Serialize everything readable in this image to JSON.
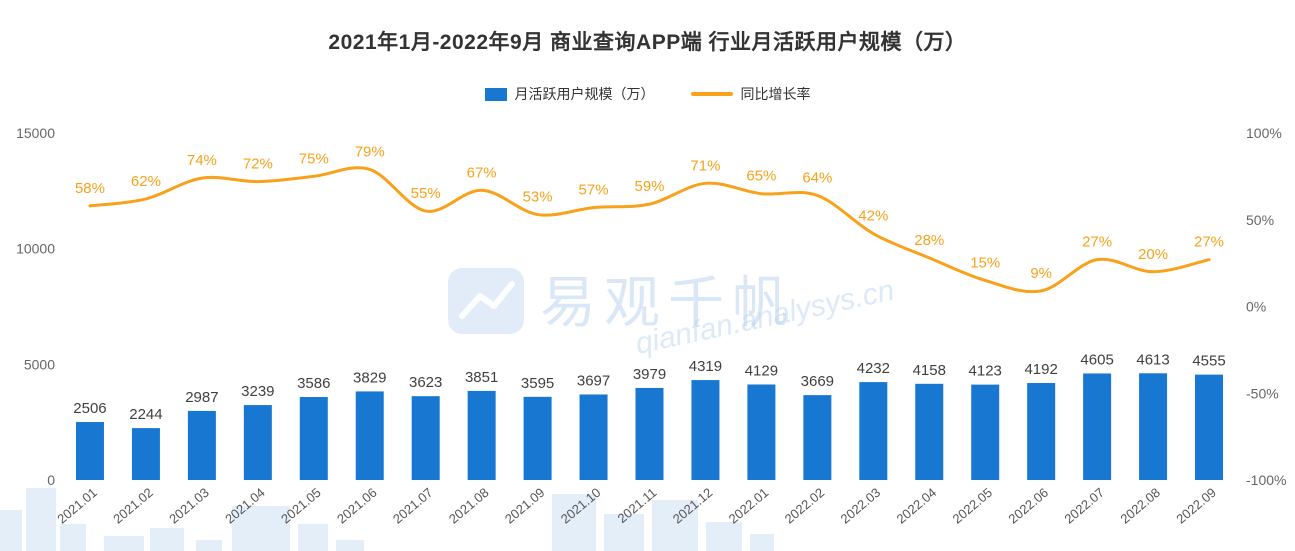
{
  "title": "2021年1月-2022年9月 商业查询APP端 行业月活跃用户规模（万）",
  "legend": {
    "bar_label": "月活跃用户规模（万）",
    "line_label": "同比增长率"
  },
  "colors": {
    "bar": "#1877D1",
    "line": "#F9A11B",
    "title_text": "#333333",
    "axis_text": "#666666",
    "bar_label_text": "#404040",
    "x_label_text": "#555555",
    "watermark": "#BCD5EF"
  },
  "watermark": {
    "brand": "易观千帆",
    "site": "qianfan.analysys.cn"
  },
  "chart_data": {
    "type": "bar",
    "subtype": "bar + line combo with dual y-axes",
    "title": "2021年1月-2022年9月 商业查询APP端 行业月活跃用户规模（万）",
    "legend_position": "top",
    "grid": false,
    "categories": [
      "2021.01",
      "2021.02",
      "2021.03",
      "2021.04",
      "2021.05",
      "2021.06",
      "2021.07",
      "2021.08",
      "2021.09",
      "2021.10",
      "2021.11",
      "2021.12",
      "2022.01",
      "2022.02",
      "2022.03",
      "2022.04",
      "2022.05",
      "2022.06",
      "2022.07",
      "2022.08",
      "2022.09"
    ],
    "series": [
      {
        "name": "月活跃用户规模（万）",
        "type": "bar",
        "yaxis": "left",
        "values": [
          2506,
          2244,
          2987,
          3239,
          3586,
          3829,
          3623,
          3851,
          3595,
          3697,
          3979,
          4319,
          4129,
          3669,
          4232,
          4158,
          4123,
          4192,
          4605,
          4613,
          4555
        ]
      },
      {
        "name": "同比增长率",
        "type": "line",
        "yaxis": "right",
        "unit": "%",
        "values": [
          58,
          62,
          74,
          72,
          75,
          79,
          55,
          67,
          53,
          57,
          59,
          71,
          65,
          64,
          42,
          28,
          15,
          9,
          27,
          20,
          27
        ]
      }
    ],
    "left_axis": {
      "ticks": [
        0,
        5000,
        10000,
        15000
      ],
      "range": [
        0,
        15000
      ]
    },
    "right_axis": {
      "ticks_pct": [
        -100,
        -50,
        0,
        50,
        100
      ],
      "range_pct": [
        -100,
        100
      ]
    }
  }
}
